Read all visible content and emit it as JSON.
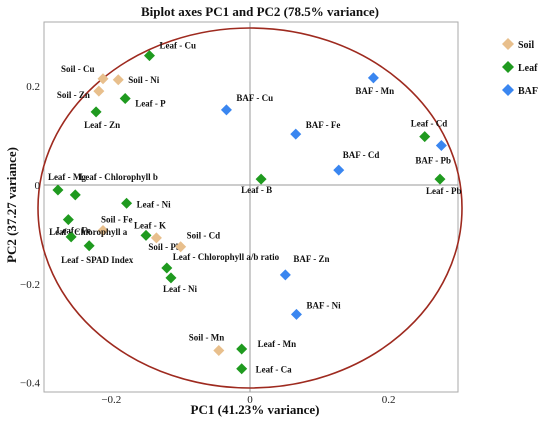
{
  "chart_data": {
    "type": "scatter",
    "title": "Biplot axes PC1 and PC2 (78.5% variance)",
    "xlabel": "PC1 (41.23% variance)",
    "ylabel": "PC2 (37.27 variance)",
    "xlim": [
      -0.3,
      0.3
    ],
    "ylim": [
      -0.41,
      0.33
    ],
    "xticks": [
      -0.2,
      0,
      0.2
    ],
    "xtick_labels": [
      "−0.2",
      "0",
      "0.2"
    ],
    "yticks": [
      -0.4,
      -0.2,
      0,
      0.2
    ],
    "ytick_labels": [
      "−0.4",
      "−0.2",
      "0",
      "0.2"
    ],
    "grid": false,
    "legend_position": "right",
    "circle_color": "#9e2a1f",
    "series": [
      {
        "name": "Soil",
        "color": "#e8bf8c",
        "points": [
          {
            "label": "Soil - Cu",
            "x": -0.212,
            "y": 0.215
          },
          {
            "label": "Soil - Ni",
            "x": -0.19,
            "y": 0.213
          },
          {
            "label": "Soil - Zn",
            "x": -0.218,
            "y": 0.19
          },
          {
            "label": "Soil - Fe",
            "x": -0.212,
            "y": -0.092
          },
          {
            "label": "Soil - Pb",
            "x": -0.135,
            "y": -0.107
          },
          {
            "label": "Soil - Cd",
            "x": -0.1,
            "y": -0.125
          },
          {
            "label": "Soil - Mn",
            "x": -0.045,
            "y": -0.335
          }
        ]
      },
      {
        "name": "Leaf",
        "color": "#1f9a1f",
        "points": [
          {
            "label": "Leaf - Cu",
            "x": -0.145,
            "y": 0.262
          },
          {
            "label": "Leaf - P",
            "x": -0.18,
            "y": 0.175
          },
          {
            "label": "Leaf - Zn",
            "x": -0.222,
            "y": 0.148
          },
          {
            "label": "Leaf - Mg",
            "x": -0.277,
            "y": -0.01
          },
          {
            "label": "Leaf - Chlorophyll b",
            "x": -0.252,
            "y": -0.02
          },
          {
            "label": "Leaf - Ni",
            "x": -0.178,
            "y": -0.037
          },
          {
            "label": "Leaf - Fe",
            "x": -0.262,
            "y": -0.07
          },
          {
            "label": "Leaf - K",
            "x": -0.15,
            "y": -0.102
          },
          {
            "label": "Leaf - Chlorophyll a",
            "x": -0.258,
            "y": -0.105
          },
          {
            "label": "Leaf - SPAD Index",
            "x": -0.232,
            "y": -0.123
          },
          {
            "label": "Leaf - Chlorophyll a/b ratio",
            "x": -0.12,
            "y": -0.168
          },
          {
            "label": "Leaf - Ni",
            "x": -0.114,
            "y": -0.188
          },
          {
            "label": "Leaf - B",
            "x": 0.016,
            "y": 0.012
          },
          {
            "label": "Leaf - Cd",
            "x": 0.252,
            "y": 0.098
          },
          {
            "label": "Leaf - Pb",
            "x": 0.274,
            "y": 0.012
          },
          {
            "label": "Leaf - Mn",
            "x": -0.012,
            "y": -0.332
          },
          {
            "label": "Leaf - Ca",
            "x": -0.012,
            "y": -0.372
          }
        ]
      },
      {
        "name": "BAF",
        "color": "#3a86f0",
        "points": [
          {
            "label": "BAF - Mn",
            "x": 0.178,
            "y": 0.217
          },
          {
            "label": "BAF - Cu",
            "x": -0.034,
            "y": 0.152
          },
          {
            "label": "BAF - Fe",
            "x": 0.066,
            "y": 0.103
          },
          {
            "label": "BAF - Cd",
            "x": 0.128,
            "y": 0.03
          },
          {
            "label": "BAF - Pb",
            "x": 0.276,
            "y": 0.08
          },
          {
            "label": "BAF - Zn",
            "x": 0.051,
            "y": -0.182
          },
          {
            "label": "BAF - Ni",
            "x": 0.067,
            "y": -0.262
          }
        ]
      }
    ]
  }
}
